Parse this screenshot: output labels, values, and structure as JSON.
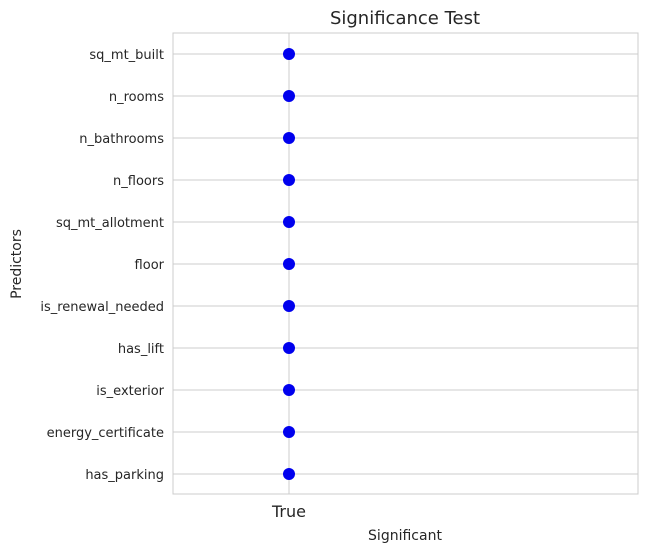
{
  "chart_data": {
    "type": "scatter",
    "title": "Significance Test",
    "xlabel": "Significant",
    "ylabel": "Predictors",
    "x_categories": [
      "True"
    ],
    "y_categories": [
      "sq_mt_built",
      "n_rooms",
      "n_bathrooms",
      "n_floors",
      "sq_mt_allotment",
      "floor",
      "is_renewal_needed",
      "has_lift",
      "is_exterior",
      "energy_certificate",
      "has_parking"
    ],
    "points": [
      {
        "x": "True",
        "y": "sq_mt_built"
      },
      {
        "x": "True",
        "y": "n_rooms"
      },
      {
        "x": "True",
        "y": "n_bathrooms"
      },
      {
        "x": "True",
        "y": "n_floors"
      },
      {
        "x": "True",
        "y": "sq_mt_allotment"
      },
      {
        "x": "True",
        "y": "floor"
      },
      {
        "x": "True",
        "y": "is_renewal_needed"
      },
      {
        "x": "True",
        "y": "has_lift"
      },
      {
        "x": "True",
        "y": "is_exterior"
      },
      {
        "x": "True",
        "y": "energy_certificate"
      },
      {
        "x": "True",
        "y": "has_parking"
      }
    ],
    "grid": true,
    "marker_color": "#0000ee",
    "grid_color": "#cccccc"
  }
}
